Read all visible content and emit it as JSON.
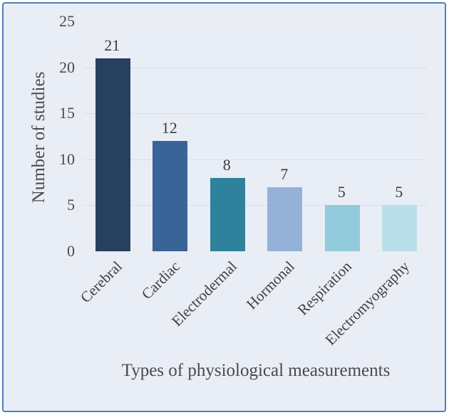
{
  "figure": {
    "background_color": "#e9edf5",
    "frame_border_color": "#4d80bb",
    "plot_border_color": "#f0ecd9",
    "gridline_color": "#d9dde5",
    "text_color": "#3f3f3f"
  },
  "chart_data": {
    "type": "bar",
    "title": "",
    "categories": [
      "Cerebral",
      "Cardiac",
      "Electrodermal",
      "Hormonal",
      "Respiration",
      "Electromyography"
    ],
    "values": [
      21,
      12,
      8,
      7,
      5,
      5
    ],
    "value_labels": [
      "21",
      "12",
      "8",
      "7",
      "5",
      "5"
    ],
    "bar_colors": [
      "#27405e",
      "#3a6397",
      "#2f829b",
      "#94b2d8",
      "#92cbdb",
      "#b9dfe9"
    ],
    "xlabel": "Types of physiological measurements",
    "ylabel": "Number of studies",
    "ylim": [
      0,
      25
    ],
    "yticks": [
      0,
      5,
      10,
      15,
      20,
      25
    ],
    "grid": true,
    "legend": "none",
    "x_tick_rotation_deg": 45
  }
}
